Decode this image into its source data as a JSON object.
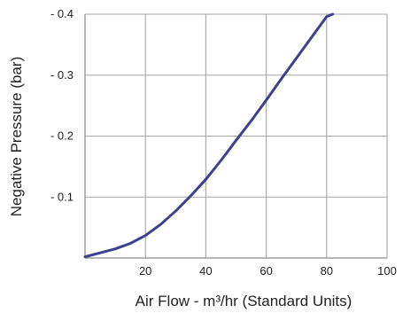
{
  "chart_data": {
    "type": "line",
    "title": "",
    "xlabel": "Air Flow -  m³/hr (Standard Units)",
    "ylabel": "Negative Pressure (bar)",
    "xlim": [
      0,
      100
    ],
    "ylim": [
      0,
      -0.4
    ],
    "x_ticks": [
      20,
      40,
      60,
      80,
      100
    ],
    "x_tick_labels": [
      "20",
      "40",
      "60",
      "80",
      "100"
    ],
    "y_ticks": [
      -0.1,
      -0.2,
      -0.3,
      -0.4
    ],
    "y_tick_labels": [
      "- 0.1",
      "- 0.2",
      "- 0.3",
      "- 0.4"
    ],
    "grid": true,
    "legend": "none",
    "series": [
      {
        "color": "#3c3f92",
        "x": [
          0,
          10,
          15,
          20,
          25,
          30,
          35,
          40,
          45,
          50,
          55,
          60,
          65,
          70,
          75,
          80,
          82
        ],
        "y": [
          -0.002,
          -0.015,
          -0.024,
          -0.037,
          -0.055,
          -0.077,
          -0.102,
          -0.129,
          -0.16,
          -0.193,
          -0.225,
          -0.259,
          -0.294,
          -0.328,
          -0.362,
          -0.396,
          -0.4
        ]
      }
    ]
  }
}
